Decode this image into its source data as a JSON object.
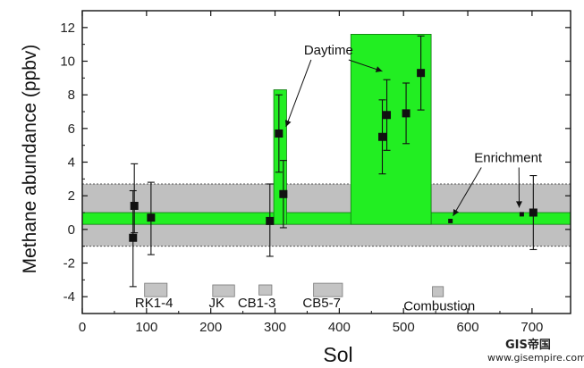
{
  "chart_data": {
    "type": "scatter",
    "xlabel": "Sol",
    "ylabel": "Methane abundance (ppbv)",
    "xlim": [
      0,
      760
    ],
    "ylim": [
      -5,
      13
    ],
    "x_ticks": [
      "0",
      "100",
      "200",
      "300",
      "400",
      "500",
      "600",
      "700"
    ],
    "y_ticks": [
      "-4",
      "-2",
      "0",
      "2",
      "4",
      "6",
      "8",
      "10",
      "12"
    ],
    "background_band": {
      "y_from": -1.0,
      "y_to": 2.7,
      "color": "#c0c0c0"
    },
    "background_line": {
      "y_from": 0.3,
      "y_to": 1.0,
      "x_from": 0,
      "x_to": 760,
      "color": "#22ee22"
    },
    "spikes": [
      {
        "x_from": 298,
        "x_to": 318,
        "y_to": 8.3
      },
      {
        "x_from": 418,
        "x_to": 543,
        "y_to": 11.6
      }
    ],
    "points": [
      {
        "x": 79,
        "y": -0.5,
        "err_lo": 2.9,
        "err_hi": 2.8
      },
      {
        "x": 81,
        "y": 1.4,
        "err_lo": 1.6,
        "err_hi": 2.5
      },
      {
        "x": 107,
        "y": 0.7,
        "err_lo": 2.2,
        "err_hi": 2.1
      },
      {
        "x": 292,
        "y": 0.5,
        "err_lo": 2.1,
        "err_hi": 2.2
      },
      {
        "x": 306,
        "y": 5.7,
        "err_lo": 2.3,
        "err_hi": 2.3
      },
      {
        "x": 313,
        "y": 2.1,
        "err_lo": 2.0,
        "err_hi": 2.0
      },
      {
        "x": 467,
        "y": 5.5,
        "err_lo": 2.2,
        "err_hi": 2.2
      },
      {
        "x": 474,
        "y": 6.8,
        "err_lo": 2.1,
        "err_hi": 2.1
      },
      {
        "x": 504,
        "y": 6.9,
        "err_lo": 1.8,
        "err_hi": 1.8
      },
      {
        "x": 527,
        "y": 9.3,
        "err_lo": 2.2,
        "err_hi": 2.2
      },
      {
        "x": 573,
        "y": 0.5,
        "err_lo": 0,
        "err_hi": 0,
        "small": true
      },
      {
        "x": 684,
        "y": 0.9,
        "err_lo": 0,
        "err_hi": 0,
        "small": true
      },
      {
        "x": 702,
        "y": 1.0,
        "err_lo": 2.2,
        "err_hi": 2.2
      }
    ],
    "campaigns": [
      {
        "label": "RK1-4",
        "x_from": 97,
        "x_to": 132,
        "y_from": -4.0,
        "y_to": -3.2,
        "label_x": 82,
        "label_y": -4.3
      },
      {
        "label": "JK",
        "x_from": 203,
        "x_to": 237,
        "y_from": -4.0,
        "y_to": -3.3,
        "label_x": 197,
        "label_y": -4.3
      },
      {
        "label": "CB1-3",
        "x_from": 275,
        "x_to": 295,
        "y_from": -3.9,
        "y_to": -3.3,
        "label_x": 242,
        "label_y": -4.3
      },
      {
        "label": "CB5-7",
        "x_from": 360,
        "x_to": 405,
        "y_from": -4.0,
        "y_to": -3.2,
        "label_x": 343,
        "label_y": -4.3
      },
      {
        "label": "Combustion",
        "x_from": 545,
        "x_to": 562,
        "y_from": -4.0,
        "y_to": -3.4,
        "label_x": 500,
        "label_y": -4.5
      }
    ],
    "annotations": [
      {
        "text": "Daytime",
        "x": 345,
        "y": 10.4,
        "arrows": [
          [
            317,
            6.1
          ],
          [
            467,
            9.4
          ]
        ]
      },
      {
        "text": "Enrichment",
        "x": 610,
        "y": 4.0,
        "arrows": [
          [
            577,
            0.8
          ],
          [
            680,
            1.3
          ]
        ]
      }
    ]
  },
  "watermark": {
    "line1": "GIS帝国",
    "line2": "www.gisempire.com"
  }
}
